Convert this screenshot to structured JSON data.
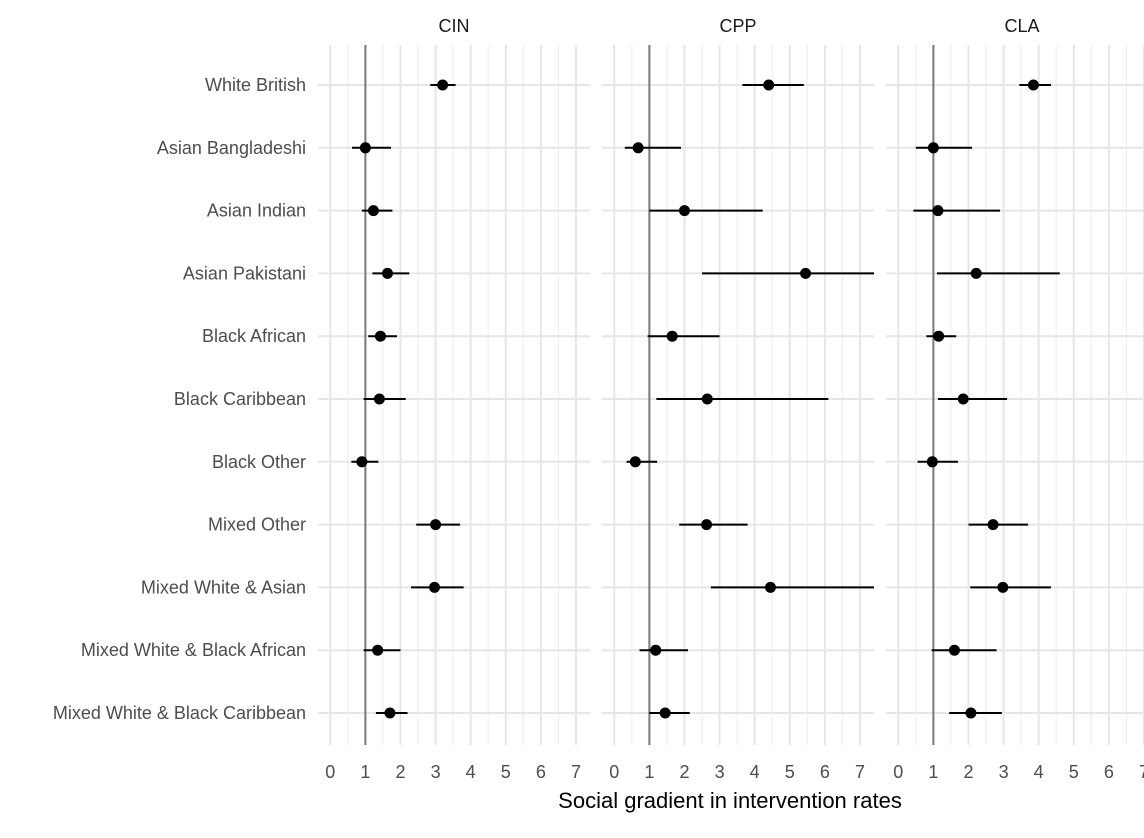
{
  "chart_data": {
    "type": "scatter",
    "subtype": "dot-and-whisker faceted",
    "xlabel": "Social gradient in intervention rates",
    "ylabel": "",
    "xlim": [
      -0.35,
      7.4
    ],
    "x_ticks": [
      0,
      1,
      2,
      3,
      4,
      5,
      6,
      7
    ],
    "reference_line_x": 1,
    "grid": true,
    "categories": [
      "White British",
      "Asian Bangladeshi",
      "Asian Indian",
      "Asian Pakistani",
      "Black African",
      "Black Caribbean",
      "Black Other",
      "Mixed Other",
      "Mixed White & Asian",
      "Mixed White & Black African",
      "Mixed White & Black Caribbean"
    ],
    "panels": [
      {
        "name": "CIN",
        "estimates": [
          3.2,
          1.0,
          1.23,
          1.63,
          1.43,
          1.4,
          0.9,
          3.0,
          2.97,
          1.35,
          1.7
        ],
        "lower": [
          2.85,
          0.62,
          0.9,
          1.2,
          1.08,
          0.95,
          0.6,
          2.45,
          2.3,
          0.95,
          1.3
        ],
        "upper": [
          3.57,
          1.73,
          1.77,
          2.25,
          1.9,
          2.15,
          1.37,
          3.7,
          3.8,
          2.0,
          2.2
        ]
      },
      {
        "name": "CPP",
        "estimates": [
          4.4,
          0.68,
          2.0,
          5.45,
          1.65,
          2.65,
          0.6,
          2.63,
          4.45,
          1.18,
          1.45
        ],
        "lower": [
          3.65,
          0.3,
          1.0,
          2.5,
          0.95,
          1.2,
          0.35,
          1.85,
          2.75,
          0.72,
          1.0
        ],
        "upper": [
          5.4,
          1.9,
          4.23,
          7.4,
          3.0,
          6.1,
          1.22,
          3.8,
          7.4,
          2.1,
          2.15
        ]
      },
      {
        "name": "CLA",
        "estimates": [
          3.85,
          1.0,
          1.13,
          2.22,
          1.15,
          1.85,
          0.97,
          2.7,
          2.98,
          1.6,
          2.07
        ],
        "lower": [
          3.45,
          0.5,
          0.43,
          1.1,
          0.8,
          1.13,
          0.55,
          2.0,
          2.05,
          0.95,
          1.45
        ],
        "upper": [
          4.35,
          2.1,
          2.9,
          4.6,
          1.65,
          3.1,
          1.7,
          3.7,
          4.35,
          2.8,
          2.95
        ]
      }
    ]
  }
}
